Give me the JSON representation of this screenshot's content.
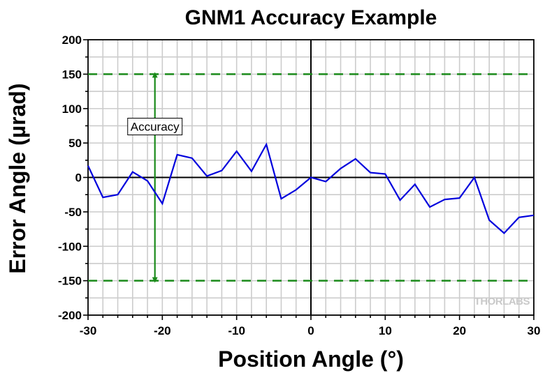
{
  "chart_data": {
    "type": "line",
    "title": "GNM1 Accuracy Example",
    "xlabel": "Position Angle (°)",
    "ylabel": "Error Angle (µrad)",
    "xlim": [
      -30,
      30
    ],
    "ylim": [
      -200,
      200
    ],
    "xticks": [
      -30,
      -20,
      -10,
      0,
      10,
      20,
      30
    ],
    "yticks": [
      200,
      150,
      100,
      50,
      0,
      -50,
      -100,
      -150,
      -200
    ],
    "grid": true,
    "series": [
      {
        "color": "#0000dd",
        "x": [
          -30,
          -28,
          -26,
          -24,
          -22,
          -20,
          -18,
          -16,
          -14,
          -12,
          -10,
          -8,
          -6,
          -4,
          -2,
          0,
          2,
          4,
          6,
          8,
          10,
          12,
          14,
          16,
          18,
          20,
          22,
          24,
          26,
          28,
          30
        ],
        "y": [
          17,
          -29,
          -25,
          8,
          -5,
          -38,
          33,
          28,
          2,
          10,
          38,
          9,
          48,
          -31,
          -18,
          0,
          -6,
          13,
          27,
          7,
          5,
          -33,
          -10,
          -43,
          -32,
          -30,
          0,
          -62,
          -81,
          -58,
          -55
        ]
      }
    ],
    "reference_lines": {
      "values": [
        150,
        -150
      ],
      "color": "#1a8a1a",
      "style": "dashed"
    },
    "annotations": [
      {
        "text": "Accuracy",
        "x": -21,
        "y_range": [
          -150,
          150
        ],
        "color": "#1a8a1a"
      }
    ],
    "watermark": "THORLABS"
  }
}
